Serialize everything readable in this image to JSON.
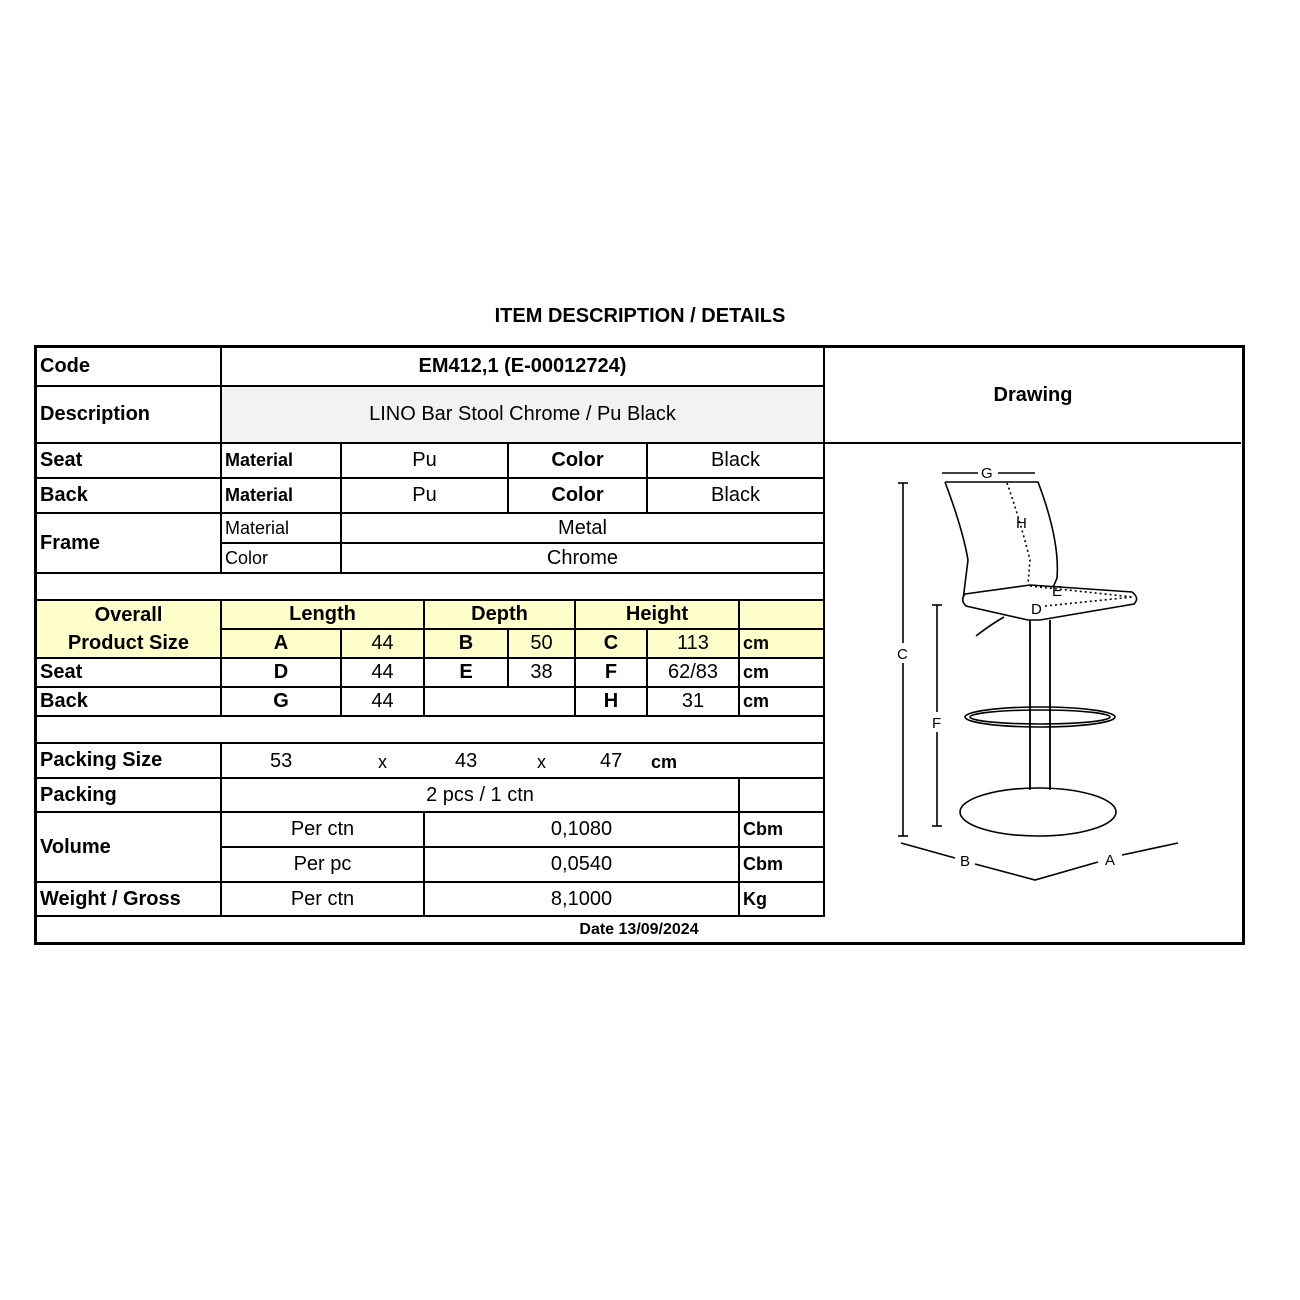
{
  "title": "ITEM DESCRIPTION / DETAILS",
  "code": {
    "label": "Code",
    "value": "EM412,1 (E-00012724)"
  },
  "description": {
    "label": "Description",
    "value": "LINO Bar Stool Chrome / Pu Black"
  },
  "drawing_label": "Drawing",
  "seat": {
    "label": "Seat",
    "material_label": "Material",
    "material": "Pu",
    "color_label": "Color",
    "color": "Black"
  },
  "back": {
    "label": "Back",
    "material_label": "Material",
    "material": "Pu",
    "color_label": "Color",
    "color": "Black"
  },
  "frame": {
    "label": "Frame",
    "material_label": "Material",
    "material": "Metal",
    "color_label": "Color",
    "color": "Chrome"
  },
  "size": {
    "label": "Overall Product Size",
    "length": "Length",
    "depth": "Depth",
    "height": "Height",
    "overall": {
      "a": "A",
      "a_val": "44",
      "b": "B",
      "b_val": "50",
      "c": "C",
      "c_val": "113",
      "unit": "cm"
    },
    "seat": {
      "label": "Seat",
      "d": "D",
      "d_val": "44",
      "e": "E",
      "e_val": "38",
      "f": "F",
      "f_val": "62/83",
      "unit": "cm"
    },
    "back": {
      "label": "Back",
      "g": "G",
      "g_val": "44",
      "h": "H",
      "h_val": "31",
      "unit": "cm"
    }
  },
  "packing_size": {
    "label": "Packing Size",
    "l": "53",
    "x1": "x",
    "w": "43",
    "x2": "x",
    "h": "47",
    "unit": "cm"
  },
  "packing": {
    "label": "Packing",
    "value": "2 pcs / 1 ctn"
  },
  "volume": {
    "label": "Volume",
    "per_ctn_label": "Per ctn",
    "per_ctn": "0,1080",
    "per_pc_label": "Per pc",
    "per_pc": "0,0540",
    "unit": "Cbm"
  },
  "weight": {
    "label": "Weight / Gross",
    "per_ctn_label": "Per ctn",
    "value": "8,1000",
    "unit": "Kg"
  },
  "date": "Date 13/09/2024",
  "drawing_labels": {
    "a": "A",
    "b": "B",
    "c": "C",
    "d": "D",
    "e": "E",
    "f": "F",
    "g": "G",
    "h": "H"
  },
  "colors": {
    "header_fill": "#ffffcc",
    "description_fill": "#f2f2f2"
  }
}
